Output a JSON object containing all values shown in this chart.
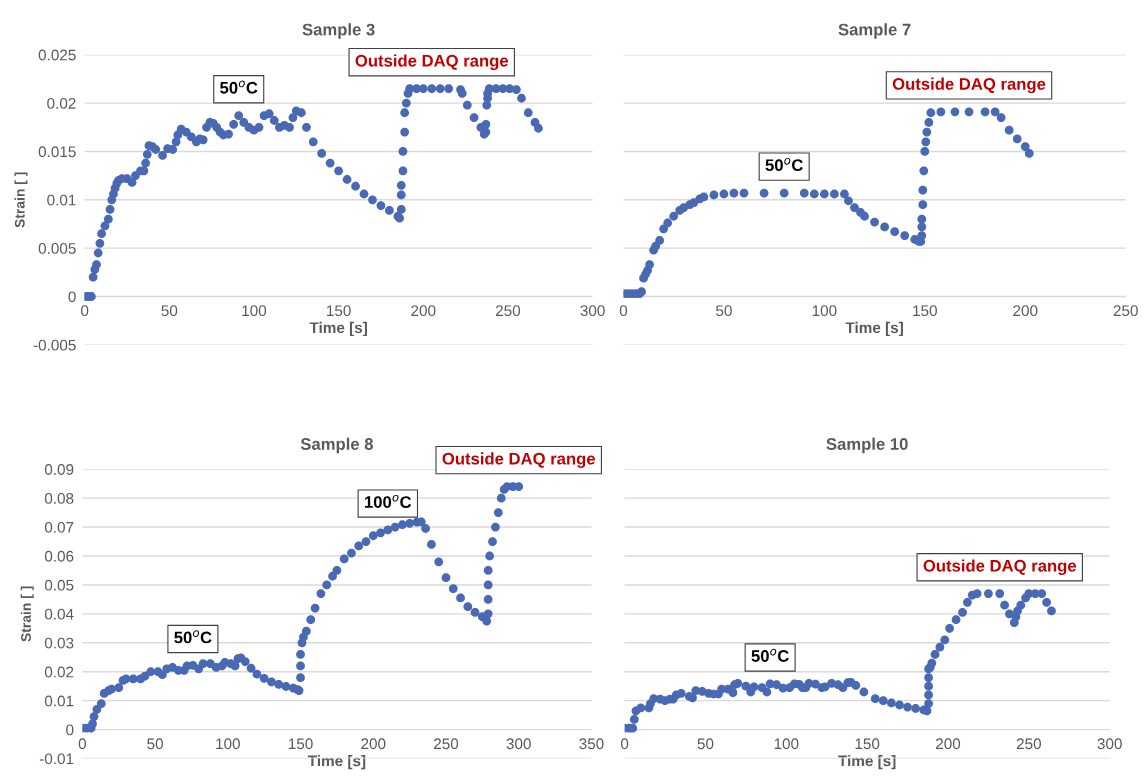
{
  "chart_data": [
    {
      "type": "scatter",
      "title": "Sample 3",
      "xlabel": "Time [s]",
      "ylabel": "Strain [ ]",
      "color": "#4a69b4",
      "marker": "circle",
      "grid": "y",
      "xlim": [
        0,
        300
      ],
      "xticks": [
        0,
        50,
        100,
        150,
        200,
        250,
        300
      ],
      "ylim": [
        -0.005,
        0.025
      ],
      "yticks": [
        -0.005,
        0,
        0.005,
        0.01,
        0.015,
        0.02,
        0.025
      ],
      "x": [
        0,
        1,
        2,
        3,
        4,
        5,
        6,
        7,
        8,
        9,
        10,
        12,
        14,
        15,
        16,
        17,
        18,
        19,
        20,
        22,
        25,
        28,
        30,
        33,
        35,
        36,
        37,
        38,
        40,
        42,
        46,
        49,
        52,
        54,
        55,
        57,
        60,
        63,
        66,
        68,
        70,
        72,
        74,
        76,
        78,
        80,
        82,
        85,
        88,
        91,
        94,
        97,
        100,
        103,
        106,
        109,
        112,
        115,
        118,
        121,
        123,
        125,
        128,
        131,
        135,
        140,
        145,
        150,
        155,
        160,
        165,
        170,
        175,
        180,
        185,
        186,
        187,
        187,
        187,
        188,
        188,
        189,
        189,
        190,
        191,
        192,
        196,
        200,
        205,
        210,
        215,
        222,
        223,
        226,
        230,
        234,
        236,
        237,
        237,
        237.5,
        238,
        238,
        239,
        243,
        247,
        251,
        255,
        258,
        262,
        266,
        268
      ],
      "values": [
        0,
        0,
        0,
        0,
        0,
        0.002,
        0.0028,
        0.0033,
        0.0045,
        0.0055,
        0.0065,
        0.0073,
        0.008,
        0.009,
        0.01,
        0.0106,
        0.0112,
        0.0117,
        0.012,
        0.0122,
        0.0122,
        0.0118,
        0.0125,
        0.013,
        0.013,
        0.0138,
        0.0147,
        0.0156,
        0.0155,
        0.0152,
        0.0146,
        0.0153,
        0.0152,
        0.016,
        0.0167,
        0.0173,
        0.017,
        0.0165,
        0.016,
        0.0163,
        0.0162,
        0.0175,
        0.018,
        0.0179,
        0.0175,
        0.017,
        0.0167,
        0.0168,
        0.0178,
        0.0187,
        0.018,
        0.0175,
        0.0172,
        0.0175,
        0.0187,
        0.0189,
        0.0182,
        0.0175,
        0.0177,
        0.0175,
        0.0185,
        0.0192,
        0.019,
        0.0175,
        0.016,
        0.0148,
        0.0138,
        0.013,
        0.0121,
        0.0114,
        0.0106,
        0.01,
        0.0094,
        0.0089,
        0.0083,
        0.0081,
        0.009,
        0.0105,
        0.0115,
        0.013,
        0.015,
        0.017,
        0.019,
        0.02,
        0.021,
        0.0215,
        0.0215,
        0.0215,
        0.0215,
        0.0215,
        0.0215,
        0.0214,
        0.021,
        0.0198,
        0.0185,
        0.0175,
        0.0168,
        0.017,
        0.0178,
        0.0198,
        0.0205,
        0.021,
        0.0215,
        0.0215,
        0.0215,
        0.0215,
        0.0214,
        0.0205,
        0.019,
        0.018,
        0.0174
      ],
      "annotations": [
        {
          "text": "50$^{o}$C",
          "x": 91,
          "y": 0.0187
        },
        {
          "text": "Outside DAQ range",
          "x": 205,
          "y": 0.0215
        }
      ]
    },
    {
      "type": "scatter",
      "title": "Sample 7",
      "xlabel": "Time [s]",
      "color": "#4a69b4",
      "marker": "circle",
      "grid": "y",
      "tick_labels": "x",
      "xlim": [
        0,
        250
      ],
      "xticks": [
        0,
        50,
        100,
        150,
        200,
        250
      ],
      "ylim": [
        -0.005,
        0.025
      ],
      "yticks": [
        -0.005,
        0,
        0.005,
        0.01,
        0.015,
        0.02,
        0.025
      ],
      "x": [
        0,
        2,
        4,
        6,
        8,
        9,
        10,
        11,
        12,
        13,
        15,
        16,
        18,
        20,
        22,
        25,
        28,
        30,
        33,
        35,
        38,
        40,
        45,
        50,
        55,
        60,
        70,
        80,
        90,
        95,
        100,
        105,
        110,
        112,
        115,
        118,
        120,
        125,
        130,
        135,
        140,
        145,
        147,
        148,
        148.5,
        148.5,
        148.5,
        149,
        149,
        149.5,
        150,
        150.5,
        151,
        152,
        153,
        158,
        165,
        172,
        180,
        185,
        188,
        192,
        196,
        200,
        202
      ],
      "values": [
        0.0003,
        0.0003,
        0.0003,
        0.0003,
        0.0003,
        0.0005,
        0.0019,
        0.0023,
        0.0027,
        0.0033,
        0.0048,
        0.0052,
        0.0058,
        0.007,
        0.0076,
        0.0083,
        0.0089,
        0.0092,
        0.0095,
        0.0097,
        0.0101,
        0.0103,
        0.0105,
        0.0106,
        0.0107,
        0.0107,
        0.0107,
        0.0107,
        0.0107,
        0.0106,
        0.0106,
        0.0106,
        0.0106,
        0.0099,
        0.0092,
        0.0087,
        0.0083,
        0.0077,
        0.0072,
        0.0067,
        0.0063,
        0.0059,
        0.0057,
        0.0057,
        0.0063,
        0.0072,
        0.008,
        0.0095,
        0.011,
        0.013,
        0.015,
        0.016,
        0.017,
        0.018,
        0.019,
        0.0191,
        0.0191,
        0.0191,
        0.0191,
        0.0191,
        0.0185,
        0.0172,
        0.0163,
        0.0155,
        0.0148
      ],
      "annotations": [
        {
          "text": "50$^{o}$C",
          "x": 80,
          "y": 0.0107
        },
        {
          "text": "Outside DAQ range",
          "x": 172,
          "y": 0.0191
        }
      ]
    },
    {
      "type": "scatter",
      "title": "Sample 8",
      "xlabel": "Time [s]",
      "ylabel": "Strain [ ]",
      "color": "#4a69b4",
      "marker": "circle",
      "grid": "y",
      "xlim": [
        0,
        350
      ],
      "xticks": [
        0,
        50,
        100,
        150,
        200,
        250,
        300,
        350
      ],
      "ylim": [
        -0.01,
        0.09
      ],
      "yticks": [
        -0.01,
        0,
        0.01,
        0.02,
        0.03,
        0.04,
        0.05,
        0.06,
        0.07,
        0.08,
        0.09
      ],
      "x": [
        0,
        3,
        6,
        7,
        8,
        10,
        13,
        15,
        18,
        20,
        25,
        28,
        30,
        35,
        40,
        43,
        47,
        52,
        55,
        58,
        62,
        66,
        70,
        72,
        76,
        80,
        83,
        88,
        92,
        96,
        98,
        102,
        105,
        107,
        109,
        112,
        116,
        120,
        125,
        130,
        135,
        140,
        145,
        148,
        149,
        150,
        150,
        150,
        151,
        152,
        154,
        157,
        160,
        164,
        168,
        172,
        175,
        180,
        185,
        190,
        195,
        200,
        205,
        210,
        215,
        220,
        225,
        230,
        233,
        236,
        240,
        245,
        250,
        255,
        260,
        265,
        270,
        275,
        278,
        279,
        279,
        279,
        279,
        280,
        282,
        284,
        286,
        288,
        290,
        292,
        296,
        300
      ],
      "values": [
        0.0005,
        0.0005,
        0.0005,
        0.002,
        0.0045,
        0.007,
        0.009,
        0.0125,
        0.0135,
        0.014,
        0.0145,
        0.017,
        0.0175,
        0.0175,
        0.0175,
        0.0185,
        0.02,
        0.02,
        0.019,
        0.021,
        0.0215,
        0.0205,
        0.0205,
        0.022,
        0.0222,
        0.021,
        0.0228,
        0.0228,
        0.0215,
        0.022,
        0.0232,
        0.0228,
        0.022,
        0.0245,
        0.0248,
        0.0235,
        0.0212,
        0.0192,
        0.0177,
        0.0165,
        0.0156,
        0.0149,
        0.0143,
        0.0138,
        0.0135,
        0.018,
        0.022,
        0.026,
        0.03,
        0.032,
        0.034,
        0.038,
        0.042,
        0.047,
        0.05,
        0.053,
        0.055,
        0.059,
        0.061,
        0.0635,
        0.065,
        0.067,
        0.068,
        0.069,
        0.07,
        0.0708,
        0.0713,
        0.0717,
        0.0718,
        0.0695,
        0.064,
        0.058,
        0.0525,
        0.0487,
        0.0455,
        0.0425,
        0.0405,
        0.039,
        0.0375,
        0.04,
        0.045,
        0.05,
        0.055,
        0.06,
        0.065,
        0.07,
        0.075,
        0.08,
        0.083,
        0.084,
        0.084,
        0.084
      ],
      "annotations": [
        {
          "text": "50$^{o}$C",
          "x": 76,
          "y": 0.0222
        },
        {
          "text": "100$^{o}$C",
          "x": 210,
          "y": 0.069
        },
        {
          "text": "Outside DAQ range",
          "x": 300,
          "y": 0.084
        }
      ]
    },
    {
      "type": "scatter",
      "title": "Sample 10",
      "xlabel": "Time [s]",
      "color": "#4a69b4",
      "marker": "circle",
      "grid": "y",
      "tick_labels": "x",
      "xlim": [
        0,
        300
      ],
      "xticks": [
        0,
        50,
        100,
        150,
        200,
        250,
        300
      ],
      "ylim": [
        -0.01,
        0.09
      ],
      "yticks": [
        -0.01,
        0,
        0.01,
        0.02,
        0.03,
        0.04,
        0.05,
        0.06,
        0.07,
        0.08,
        0.09
      ],
      "x": [
        0,
        3,
        5,
        6,
        7,
        10,
        15,
        16,
        18,
        22,
        25,
        28,
        30,
        32,
        35,
        40,
        42,
        44,
        48,
        52,
        55,
        58,
        60,
        64,
        67,
        68,
        70,
        75,
        78,
        80,
        85,
        88,
        90,
        94,
        98,
        102,
        105,
        108,
        110,
        112,
        114,
        118,
        122,
        124,
        128,
        132,
        135,
        138,
        140,
        143,
        148,
        155,
        160,
        165,
        170,
        175,
        180,
        185,
        187,
        188,
        188,
        188,
        188,
        188,
        189,
        190,
        192,
        195,
        198,
        201,
        205,
        209,
        212,
        215,
        218,
        225,
        232,
        235,
        238,
        241,
        242,
        243,
        245,
        248,
        250,
        254,
        258,
        261,
        264
      ],
      "values": [
        0.0005,
        0.0005,
        0.0005,
        0.0035,
        0.0065,
        0.0075,
        0.0075,
        0.009,
        0.0107,
        0.0105,
        0.01,
        0.0105,
        0.0105,
        0.012,
        0.0125,
        0.0115,
        0.011,
        0.0135,
        0.0132,
        0.0125,
        0.0123,
        0.0123,
        0.014,
        0.014,
        0.0128,
        0.0155,
        0.016,
        0.015,
        0.013,
        0.0148,
        0.0145,
        0.013,
        0.0158,
        0.0155,
        0.0143,
        0.0145,
        0.0158,
        0.0156,
        0.0145,
        0.0145,
        0.016,
        0.0157,
        0.0145,
        0.0148,
        0.016,
        0.0155,
        0.0145,
        0.0162,
        0.0163,
        0.0153,
        0.013,
        0.0107,
        0.01,
        0.0092,
        0.0085,
        0.0078,
        0.0073,
        0.0068,
        0.0065,
        0.009,
        0.012,
        0.015,
        0.018,
        0.021,
        0.0215,
        0.023,
        0.026,
        0.0285,
        0.031,
        0.035,
        0.038,
        0.0405,
        0.044,
        0.0465,
        0.047,
        0.047,
        0.047,
        0.043,
        0.04,
        0.037,
        0.039,
        0.041,
        0.043,
        0.0455,
        0.047,
        0.047,
        0.047,
        0.044,
        0.041
      ],
      "annotations": [
        {
          "text": "50$^{o}$C",
          "x": 90,
          "y": 0.0158
        },
        {
          "text": "Outside DAQ range",
          "x": 232,
          "y": 0.047
        }
      ]
    }
  ]
}
